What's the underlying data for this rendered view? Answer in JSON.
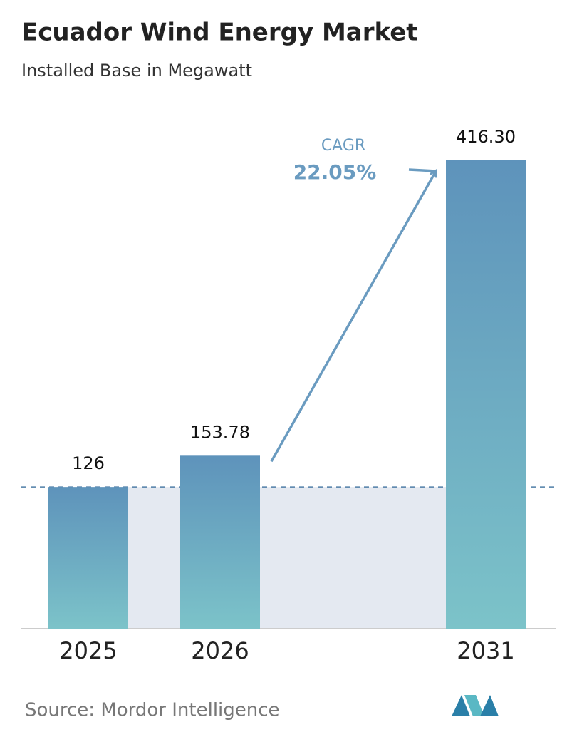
{
  "chart_data": {
    "type": "bar",
    "title": "Ecuador Wind Energy Market",
    "subtitle": "Installed Base in Megawatt",
    "categories": [
      "2025",
      "2026",
      "2031"
    ],
    "values": [
      126,
      153.78,
      416.3
    ],
    "value_labels": [
      "126",
      "153.78",
      "416.30"
    ],
    "annotations": {
      "cagr_label": "CAGR",
      "cagr_value": "22.05%"
    },
    "source": "Source:  Mordor Intelligence"
  }
}
